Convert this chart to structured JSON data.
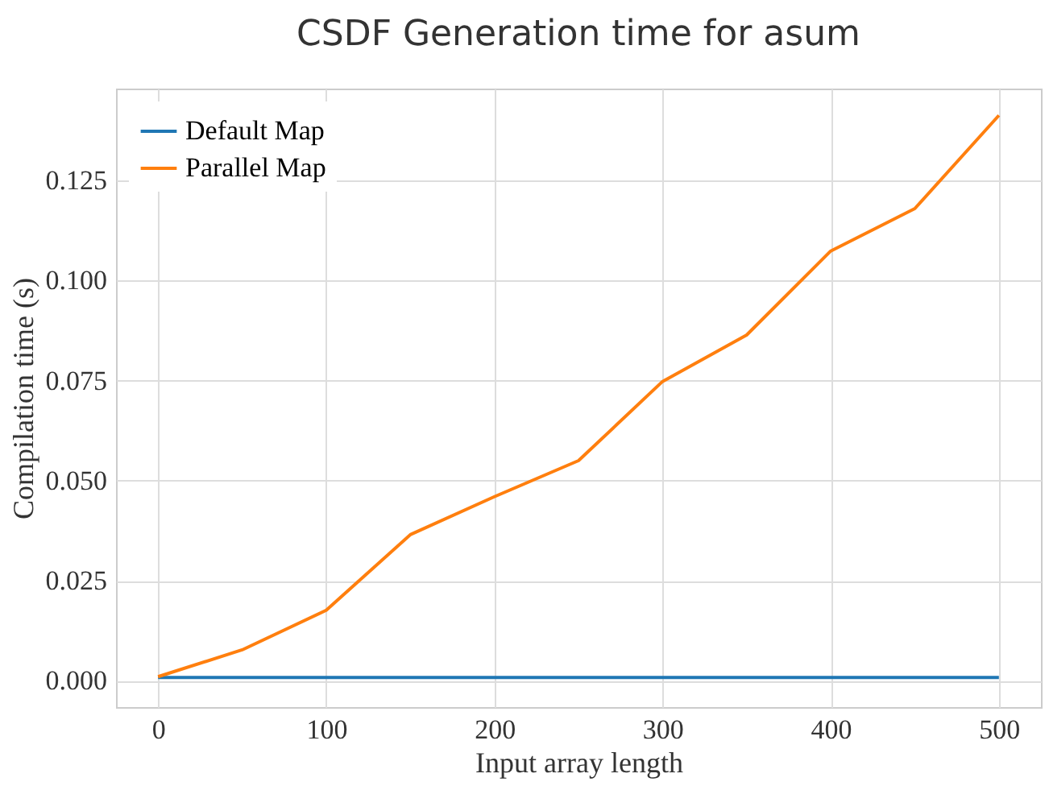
{
  "chart_data": {
    "type": "line",
    "title": "CSDF Generation time for asum",
    "xlabel": "Input array length",
    "ylabel": "Compilation time (s)",
    "x": [
      0,
      50,
      100,
      150,
      200,
      250,
      300,
      350,
      400,
      450,
      500
    ],
    "series": [
      {
        "name": "Default Map",
        "color": "#1f77b4",
        "values": [
          0.0008,
          0.0008,
          0.0008,
          0.0008,
          0.0008,
          0.0008,
          0.0008,
          0.0008,
          0.0008,
          0.0008,
          0.0008
        ]
      },
      {
        "name": "Parallel Map",
        "color": "#ff7f0e",
        "values": [
          0.001,
          0.0077,
          0.0176,
          0.0365,
          0.046,
          0.055,
          0.0748,
          0.0864,
          0.1074,
          0.118,
          0.1413
        ]
      }
    ],
    "xlim": [
      -25,
      525
    ],
    "xticks": [
      0,
      100,
      200,
      300,
      400,
      500
    ],
    "ylim": [
      -0.0066,
      0.148
    ],
    "yticks": [
      {
        "value": 0,
        "label": "0.000"
      },
      {
        "value": 0.025,
        "label": "0.025"
      },
      {
        "value": 0.05,
        "label": "0.050"
      },
      {
        "value": 0.075,
        "label": "0.075"
      },
      {
        "value": 0.1,
        "label": "0.100"
      },
      {
        "value": 0.125,
        "label": "0.125"
      }
    ],
    "grid": true,
    "legend": "top left",
    "marker": "none",
    "line_style": "solid"
  }
}
